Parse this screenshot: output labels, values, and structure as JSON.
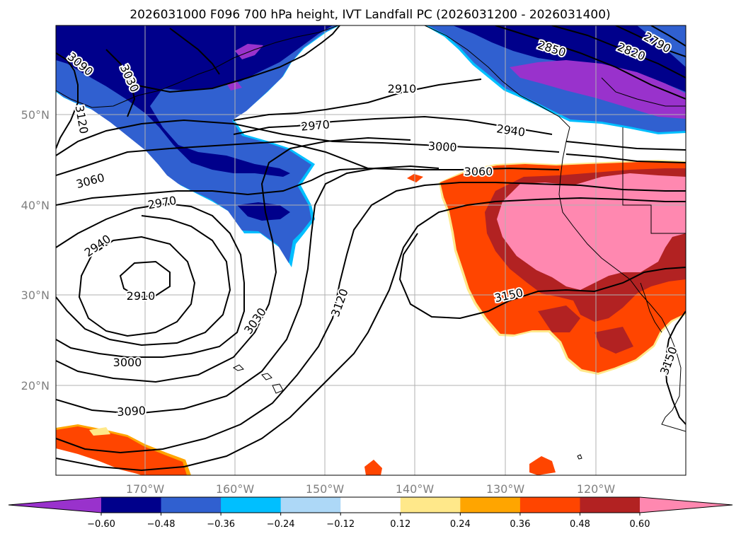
{
  "title": "2026031000 F096 700 hPa height, IVT Landfall PC (2026031200 - 2026031400)",
  "lat_labels": [
    "50°N",
    "40°N",
    "30°N",
    "20°N"
  ],
  "lon_labels": [
    "170°W",
    "160°W",
    "150°W",
    "140°W",
    "130°W",
    "120°W"
  ],
  "contour_labels": [
    "3090",
    "3030",
    "3120",
    "2910",
    "2850",
    "2820",
    "2790",
    "2970",
    "2940",
    "3000",
    "3060",
    "3060",
    "2970",
    "2940",
    "2910",
    "3000",
    "3030",
    "3120",
    "3150",
    "3090",
    "3150"
  ],
  "colorbar": {
    "ticks": [
      "−0.60",
      "−0.48",
      "−0.36",
      "−0.24",
      "−0.12",
      "0.12",
      "0.24",
      "0.36",
      "0.48",
      "0.60"
    ],
    "colors": [
      "#9932cc",
      "#00008b",
      "#3060d0",
      "#00bfff",
      "#add8f7",
      "#ffffff",
      "#ffe88a",
      "#ffa500",
      "#ff4500",
      "#b22222",
      "#ff88b0"
    ]
  },
  "map_colors": {
    "ocean": "#ffffff",
    "grid": "#b0b0b0",
    "contour": "#000000",
    "coast": "#000000"
  }
}
